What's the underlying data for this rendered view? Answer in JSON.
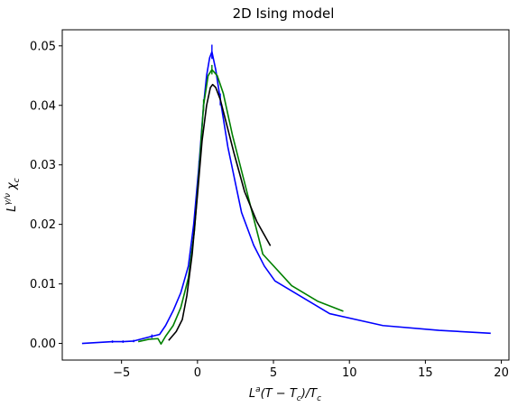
{
  "chart_data": {
    "type": "line",
    "title": "2D Ising model",
    "xlabel": "L^a(T − T_c)/T_c",
    "ylabel": "L^{γ/ν} χ_c",
    "xlim": [
      -8.9,
      20.5
    ],
    "ylim": [
      -0.0028,
      0.0527
    ],
    "xticks": [
      -5,
      0,
      5,
      10,
      15,
      20
    ],
    "xtick_labels": [
      "−5",
      "0",
      "5",
      "10",
      "15",
      "20"
    ],
    "yticks": [
      0.0,
      0.01,
      0.02,
      0.03,
      0.04,
      0.05
    ],
    "ytick_labels": [
      "0.00",
      "0.01",
      "0.02",
      "0.03",
      "0.04",
      "0.05"
    ],
    "grid": false,
    "legend": "none",
    "series": [
      {
        "color": "#0000ff",
        "x": [
          -7.6,
          -5.6,
          -4.9,
          -4.2,
          -3.6,
          -3.0,
          -2.5,
          -2.1,
          -1.6,
          -1.1,
          -0.6,
          -0.25,
          0.1,
          0.4,
          0.6,
          0.8,
          0.95,
          1.2,
          1.5,
          2.0,
          2.9,
          3.7,
          4.4,
          5.1,
          8.7,
          12.2,
          15.9,
          19.3
        ],
        "y": [
          0.0,
          0.0003,
          0.0003,
          0.0004,
          0.0008,
          0.0012,
          0.0015,
          0.003,
          0.0055,
          0.0085,
          0.013,
          0.02,
          0.03,
          0.04,
          0.045,
          0.048,
          0.049,
          0.046,
          0.041,
          0.033,
          0.022,
          0.0165,
          0.013,
          0.0105,
          0.005,
          0.003,
          0.0022,
          0.0017
        ],
        "error_bars": [
          {
            "x": -5.6,
            "low": 0.0001,
            "high": 0.0005
          },
          {
            "x": -4.9,
            "low": 0.0001,
            "high": 0.0005
          },
          {
            "x": -4.2,
            "low": 0.0002,
            "high": 0.0006
          },
          {
            "x": -3.0,
            "low": 0.0009,
            "high": 0.0015
          },
          {
            "x": 0.1,
            "low": 0.0293,
            "high": 0.0307
          },
          {
            "x": 0.95,
            "low": 0.0478,
            "high": 0.0502
          },
          {
            "x": 1.5,
            "low": 0.04,
            "high": 0.042
          }
        ]
      },
      {
        "color": "#008000",
        "x": [
          -3.9,
          -3.2,
          -2.6,
          -2.4,
          -2.1,
          -1.6,
          -1.1,
          -0.6,
          -0.2,
          0.1,
          0.4,
          0.7,
          0.95,
          1.3,
          1.7,
          2.3,
          3.2,
          4.3,
          6.2,
          7.9,
          9.6
        ],
        "y": [
          0.0003,
          0.0007,
          0.0008,
          -0.0001,
          0.0012,
          0.003,
          0.006,
          0.011,
          0.019,
          0.029,
          0.04,
          0.045,
          0.046,
          0.045,
          0.042,
          0.035,
          0.026,
          0.015,
          0.0097,
          0.0071,
          0.0054
        ],
        "error_bars": [
          {
            "x": 0.4,
            "low": 0.039,
            "high": 0.041
          },
          {
            "x": 0.95,
            "low": 0.0452,
            "high": 0.0468
          }
        ]
      },
      {
        "color": "#000000",
        "x": [
          -1.9,
          -1.4,
          -1.0,
          -0.7,
          -0.35,
          0.0,
          0.3,
          0.6,
          0.85,
          1.0,
          1.2,
          1.5,
          1.9,
          2.4,
          3.1,
          3.9,
          4.8
        ],
        "y": [
          0.0005,
          0.002,
          0.004,
          0.008,
          0.015,
          0.025,
          0.034,
          0.04,
          0.043,
          0.0435,
          0.043,
          0.041,
          0.037,
          0.032,
          0.0255,
          0.0205,
          0.0164
        ],
        "error_bars": []
      }
    ]
  }
}
